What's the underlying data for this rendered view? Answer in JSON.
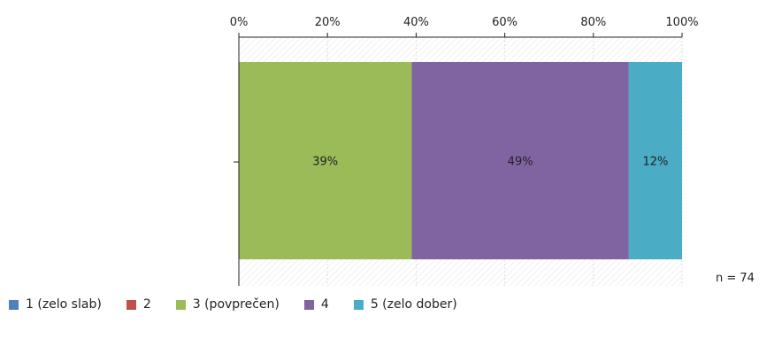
{
  "chart_data": {
    "type": "bar",
    "orientation": "horizontal",
    "stacked": true,
    "percent_scale": true,
    "x_ticks": [
      "0%",
      "20%",
      "40%",
      "60%",
      "80%",
      "100%"
    ],
    "xlim": [
      0,
      100
    ],
    "grid": true,
    "legend_position": "bottom",
    "series": [
      {
        "name": "1 (zelo slab)",
        "value": 0,
        "label": "",
        "color": "#4f81bd"
      },
      {
        "name": "2",
        "value": 0,
        "label": "",
        "color": "#c0504d"
      },
      {
        "name": "3 (povprečen)",
        "value": 39,
        "label": "39%",
        "color": "#9bbb59"
      },
      {
        "name": "4",
        "value": 49,
        "label": "49%",
        "color": "#8064a2"
      },
      {
        "name": "5 (zelo dober)",
        "value": 12,
        "label": "12%",
        "color": "#4bacc6"
      }
    ],
    "n_label": "n = 74"
  }
}
